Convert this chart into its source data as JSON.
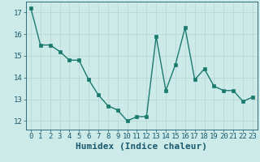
{
  "x": [
    0,
    1,
    2,
    3,
    4,
    5,
    6,
    7,
    8,
    9,
    10,
    11,
    12,
    13,
    14,
    15,
    16,
    17,
    18,
    19,
    20,
    21,
    22,
    23
  ],
  "y": [
    17.2,
    15.5,
    15.5,
    15.2,
    14.8,
    14.8,
    13.9,
    13.2,
    12.7,
    12.5,
    12.0,
    12.2,
    12.2,
    15.9,
    13.4,
    14.6,
    16.3,
    13.9,
    14.4,
    13.6,
    13.4,
    13.4,
    12.9,
    13.1
  ],
  "line_color": "#1a7a6e",
  "marker": "s",
  "marker_size": 2.5,
  "bg_color": "#cceae8",
  "grid_color": "#b8d8d5",
  "xlabel": "Humidex (Indice chaleur)",
  "xlabel_fontsize": 8,
  "xlabel_color": "#1a5a6e",
  "xticks": [
    0,
    1,
    2,
    3,
    4,
    5,
    6,
    7,
    8,
    9,
    10,
    11,
    12,
    13,
    14,
    15,
    16,
    17,
    18,
    19,
    20,
    21,
    22,
    23
  ],
  "yticks": [
    12,
    13,
    14,
    15,
    16,
    17
  ],
  "ylim": [
    11.6,
    17.5
  ],
  "xlim": [
    -0.5,
    23.5
  ],
  "tick_fontsize": 6.5,
  "tick_color": "#1a5a6e",
  "line_width": 1.0
}
